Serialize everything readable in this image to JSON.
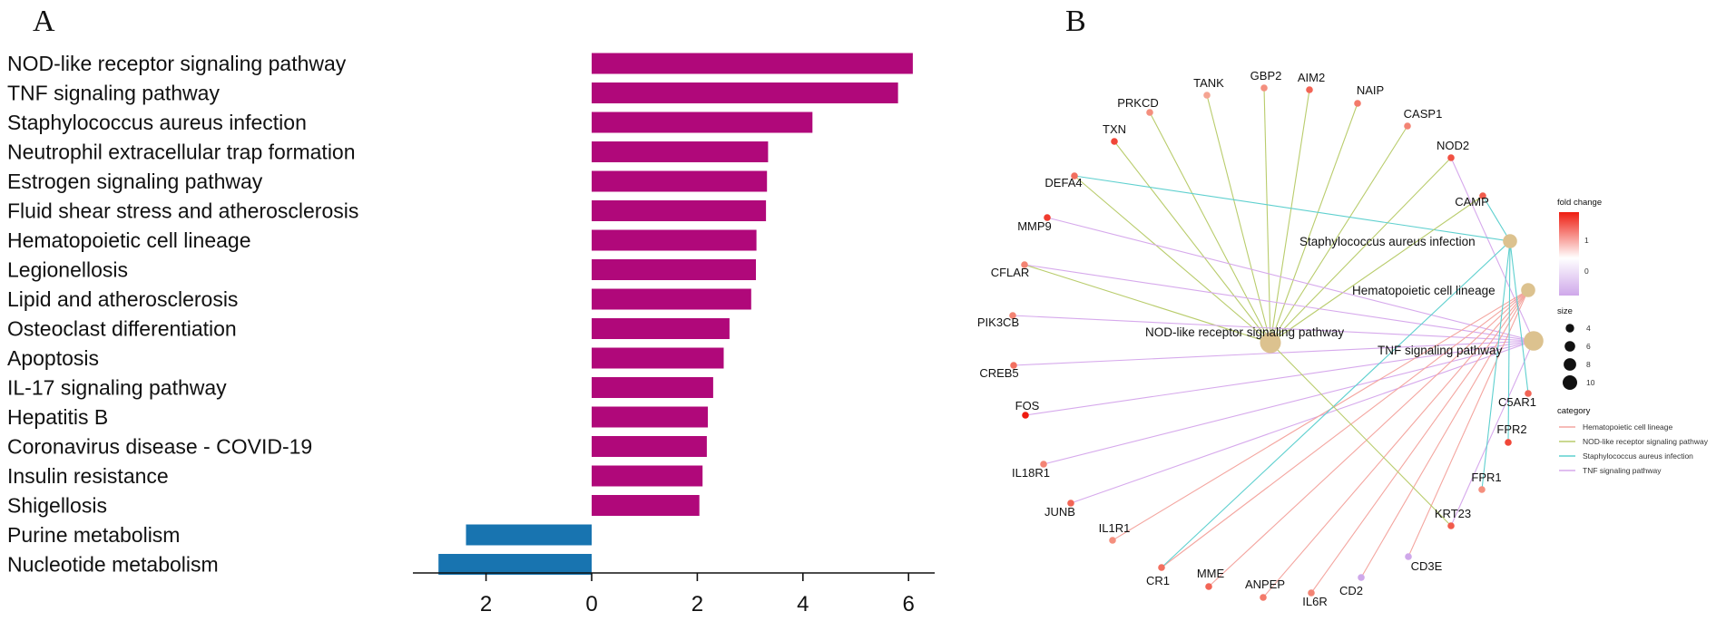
{
  "panels": {
    "a": "A",
    "b": "B"
  },
  "colors": {
    "up_bar": "#b0087a",
    "down_bar": "#1874b0",
    "node_fill": "#dcc28f",
    "fc_high": "#ee1c10",
    "fc_mid": "#f6c3b0",
    "fc_low": "#cfa8ea",
    "hema_edge": "#f4a6a0",
    "nod_edge": "#b9cc6c",
    "staph_edge": "#5fd0cf",
    "tnf_edge": "#d6a9ec"
  },
  "chart_data": [
    {
      "type": "bar",
      "orientation": "horizontal",
      "panel": "A",
      "title": "",
      "xlabel": "",
      "ylabel": "",
      "xlim": [
        -3.5,
        6.6
      ],
      "ticks": [
        -2,
        0,
        2,
        4,
        6
      ],
      "tick_labels": [
        "2",
        "0",
        "2",
        "4",
        "6"
      ],
      "categories": [
        "NOD-like receptor signaling pathway",
        "TNF signaling pathway",
        "Staphylococcus aureus infection",
        "Neutrophil extracellular trap formation",
        "Estrogen signaling pathway",
        "Fluid shear stress and atherosclerosis",
        "Hematopoietic cell lineage",
        "Legionellosis",
        "Lipid and atherosclerosis",
        "Osteoclast differentiation",
        "Apoptosis",
        "IL-17 signaling pathway",
        "Hepatitis B",
        "Coronavirus disease - COVID-19",
        "Insulin resistance",
        "Shigellosis",
        "Purine metabolism",
        "Nucleotide metabolism"
      ],
      "values": [
        6.08,
        5.8,
        4.18,
        3.34,
        3.32,
        3.3,
        3.12,
        3.11,
        3.02,
        2.61,
        2.5,
        2.3,
        2.2,
        2.18,
        2.1,
        2.04,
        -2.38,
        -2.9
      ]
    },
    {
      "type": "network",
      "panel": "B",
      "title": "",
      "categories": [
        "Hematopoietic cell lineage",
        "NOD-like receptor signaling pathway",
        "Staphylococcus aureus infection",
        "TNF signaling pathway"
      ],
      "pathway_nodes": [
        {
          "name": "Staphylococcus aureus infection",
          "size": 5
        },
        {
          "name": "Hematopoietic cell lineage",
          "size": 5
        },
        {
          "name": "NOD-like receptor signaling pathway",
          "size": 10
        },
        {
          "name": "TNF signaling pathway",
          "size": 9
        }
      ],
      "gene_nodes": [
        {
          "name": "TANK",
          "fc": 0.3,
          "links": [
            "NOD-like receptor signaling pathway"
          ]
        },
        {
          "name": "GBP2",
          "fc": 0.5,
          "links": [
            "NOD-like receptor signaling pathway"
          ]
        },
        {
          "name": "AIM2",
          "fc": 0.9,
          "links": [
            "NOD-like receptor signaling pathway"
          ]
        },
        {
          "name": "NAIP",
          "fc": 0.7,
          "links": [
            "NOD-like receptor signaling pathway"
          ]
        },
        {
          "name": "CASP1",
          "fc": 0.6,
          "links": [
            "NOD-like receptor signaling pathway"
          ]
        },
        {
          "name": "PRKCD",
          "fc": 0.5,
          "links": [
            "NOD-like receptor signaling pathway"
          ]
        },
        {
          "name": "TXN",
          "fc": 1.2,
          "links": [
            "NOD-like receptor signaling pathway"
          ]
        },
        {
          "name": "NOD2",
          "fc": 1.1,
          "links": [
            "NOD-like receptor signaling pathway",
            "TNF signaling pathway"
          ]
        },
        {
          "name": "DEFA4",
          "fc": 0.8,
          "links": [
            "NOD-like receptor signaling pathway",
            "Staphylococcus aureus infection"
          ]
        },
        {
          "name": "CAMP",
          "fc": 1.0,
          "links": [
            "NOD-like receptor signaling pathway",
            "Staphylococcus aureus infection"
          ]
        },
        {
          "name": "MMP9",
          "fc": 1.3,
          "links": [
            "TNF signaling pathway"
          ]
        },
        {
          "name": "CFLAR",
          "fc": 0.6,
          "links": [
            "NOD-like receptor signaling pathway",
            "TNF signaling pathway"
          ]
        },
        {
          "name": "PIK3CB",
          "fc": 0.6,
          "links": [
            "TNF signaling pathway"
          ]
        },
        {
          "name": "CREB5",
          "fc": 0.8,
          "links": [
            "TNF signaling pathway"
          ]
        },
        {
          "name": "FOS",
          "fc": 1.6,
          "links": [
            "TNF signaling pathway"
          ]
        },
        {
          "name": "IL18R1",
          "fc": 0.6,
          "links": [
            "TNF signaling pathway"
          ]
        },
        {
          "name": "JUNB",
          "fc": 0.9,
          "links": [
            "TNF signaling pathway"
          ]
        },
        {
          "name": "IL1R1",
          "fc": 0.5,
          "links": [
            "Hematopoietic cell lineage"
          ]
        },
        {
          "name": "CR1",
          "fc": 0.8,
          "links": [
            "Hematopoietic cell lineage",
            "Staphylococcus aureus infection"
          ]
        },
        {
          "name": "MME",
          "fc": 0.9,
          "links": [
            "Hematopoietic cell lineage"
          ]
        },
        {
          "name": "ANPEP",
          "fc": 0.7,
          "links": [
            "Hematopoietic cell lineage"
          ]
        },
        {
          "name": "IL6R",
          "fc": 0.6,
          "links": [
            "Hematopoietic cell lineage"
          ]
        },
        {
          "name": "CD2",
          "fc": -0.4,
          "links": [
            "Hematopoietic cell lineage"
          ]
        },
        {
          "name": "CD3E",
          "fc": -0.5,
          "links": [
            "Hematopoietic cell lineage"
          ]
        },
        {
          "name": "KRT23",
          "fc": 1.0,
          "links": [
            "TNF signaling pathway",
            "NOD-like receptor signaling pathway"
          ]
        },
        {
          "name": "FPR1",
          "fc": 0.5,
          "links": [
            "Staphylococcus aureus infection"
          ]
        },
        {
          "name": "FPR2",
          "fc": 1.2,
          "links": [
            "Staphylococcus aureus infection"
          ]
        },
        {
          "name": "C5AR1",
          "fc": 0.9,
          "links": [
            "Staphylococcus aureus infection"
          ]
        }
      ],
      "legend": {
        "fold_change_title": "fold change",
        "fold_change_ticks": [
          "1",
          "0"
        ],
        "size_title": "size",
        "size_ticks": [
          "4",
          "6",
          "8",
          "10"
        ],
        "category_title": "category"
      }
    }
  ]
}
